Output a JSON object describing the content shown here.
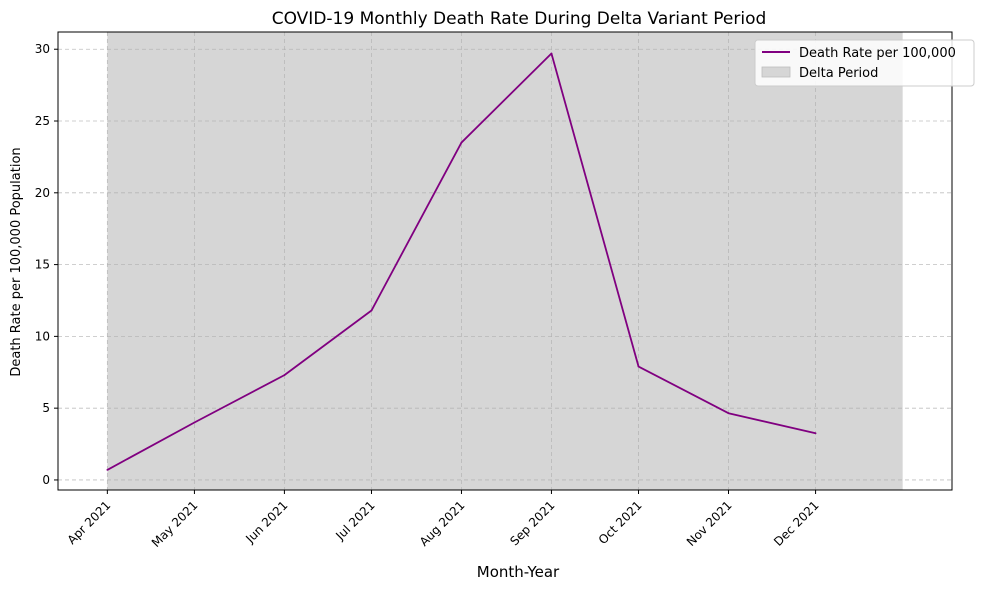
{
  "chart_data": {
    "type": "line",
    "title": "COVID-19 Monthly Death Rate During Delta Variant Period",
    "xlabel": "Month-Year",
    "ylabel": "Death Rate per 100,000 Population",
    "categories": [
      "Apr 2021",
      "May 2021",
      "Jun 2021",
      "Jul 2021",
      "Aug 2021",
      "Sep 2021",
      "Oct 2021",
      "Nov 2021",
      "Dec 2021"
    ],
    "x": [
      "2021-04-01",
      "2021-05-01",
      "2021-06-01",
      "2021-07-01",
      "2021-08-01",
      "2021-09-01",
      "2021-10-01",
      "2021-11-01",
      "2021-12-01"
    ],
    "series": [
      {
        "name": "Death Rate per 100,000",
        "color": "#800080",
        "values": [
          0.7,
          4.0,
          7.3,
          11.8,
          23.5,
          29.7,
          7.9,
          4.65,
          3.25
        ]
      }
    ],
    "shaded_region": {
      "name": "Delta Period",
      "color": "#d6d6d6",
      "x_start": "2021-04-01",
      "x_end": "2021-12-31"
    },
    "xlim": [
      "2021-03-15",
      "2022-01-17"
    ],
    "ylim": [
      -0.7,
      31.2
    ],
    "yticks": [
      0,
      5,
      10,
      15,
      20,
      25,
      30
    ],
    "grid": true,
    "legend_position": "upper right"
  }
}
